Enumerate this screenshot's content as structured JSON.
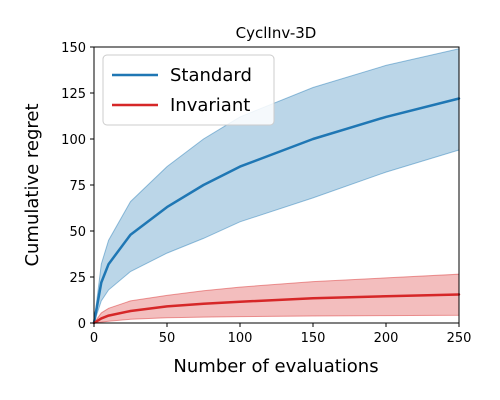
{
  "chart_data": {
    "type": "line",
    "title": "CyclInv-3D",
    "xlabel": "Number of evaluations",
    "ylabel": "Cumulative regret",
    "xlim": [
      0,
      250
    ],
    "ylim": [
      0,
      150
    ],
    "xticks": [
      "0",
      "50",
      "100",
      "150",
      "200",
      "250"
    ],
    "yticks": [
      "0",
      "25",
      "50",
      "75",
      "100",
      "125",
      "150"
    ],
    "grid": false,
    "legend_position": "top-left",
    "x": [
      0,
      5,
      10,
      25,
      50,
      75,
      100,
      150,
      200,
      250
    ],
    "series": [
      {
        "name": "Standard",
        "color": "#1f77b4",
        "values": [
          0,
          22,
          32,
          48,
          63,
          75,
          85,
          100,
          112,
          122
        ],
        "lower": [
          0,
          12,
          18,
          28,
          38,
          46,
          55,
          68,
          82,
          94
        ],
        "upper": [
          0,
          32,
          45,
          66,
          85,
          100,
          112,
          128,
          140,
          149
        ]
      },
      {
        "name": "Invariant",
        "color": "#d62728",
        "values": [
          0,
          2.5,
          4,
          6.5,
          9,
          10.5,
          11.5,
          13.5,
          14.5,
          15.5
        ],
        "lower": [
          0,
          0.5,
          1,
          2,
          2.8,
          3.2,
          3.5,
          3.8,
          4,
          4.2
        ],
        "upper": [
          0,
          5.5,
          8,
          12,
          15,
          17.5,
          19.5,
          22.5,
          24.5,
          26.5
        ]
      }
    ]
  }
}
